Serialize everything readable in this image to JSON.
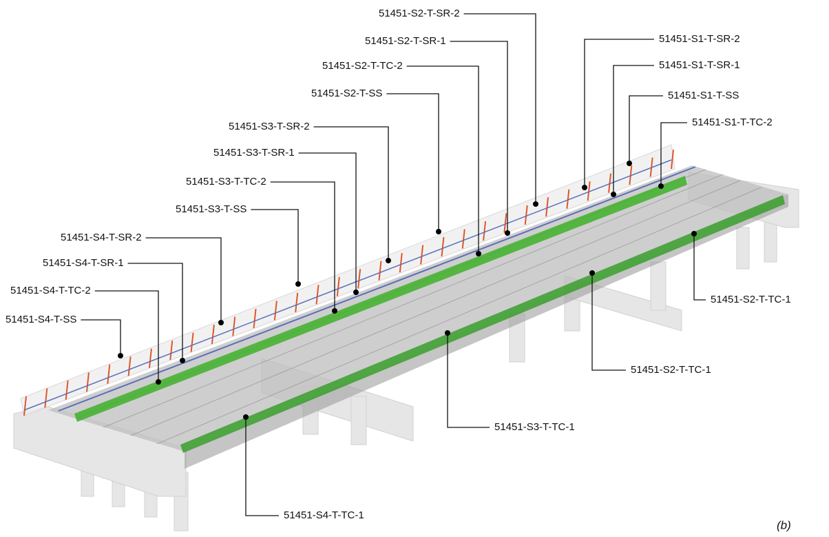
{
  "nodes": [
    {
      "label": "51451-S2-T-SR-2"
    },
    {
      "label": "51451-S2-T-SR-1"
    },
    {
      "label": "51451-S2-T-TC-2"
    },
    {
      "label": "51451-S2-T-SS"
    },
    {
      "label": "51451-S3-T-SR-2"
    },
    {
      "label": "51451-S3-T-SR-1"
    },
    {
      "label": "51451-S3-T-TC-2"
    },
    {
      "label": "51451-S3-T-SS"
    },
    {
      "label": "51451-S4-T-SR-2"
    },
    {
      "label": "51451-S4-T-SR-1"
    },
    {
      "label": "51451-S4-T-TC-2"
    },
    {
      "label": "51451-S4-T-SS"
    },
    {
      "label": "51451-S1-T-SR-2"
    },
    {
      "label": "51451-S1-T-SR-1"
    },
    {
      "label": "51451-S1-T-SS"
    },
    {
      "label": "51451-S1-T-TC-2"
    },
    {
      "label": "51451-S2-T-TC-1"
    },
    {
      "label": "51451-S2-T-TC-1"
    },
    {
      "label": "51451-S3-T-TC-1"
    },
    {
      "label": "51451-S4-T-TC-1"
    }
  ],
  "caption": "(b)"
}
